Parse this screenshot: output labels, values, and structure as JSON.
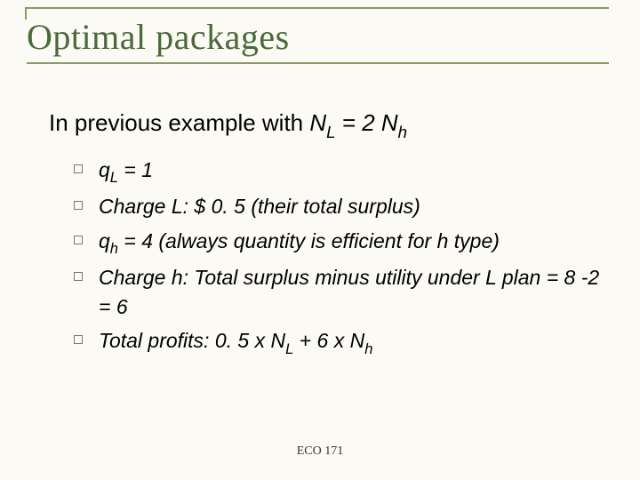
{
  "colors": {
    "background": "#fbfaf4",
    "title_text": "#4a6a3a",
    "rule": "#8a9a6a",
    "body_text": "#000000",
    "bullet_border": "#7a7a5a"
  },
  "typography": {
    "title_font": "Times New Roman",
    "title_size_pt": 40,
    "body_font": "Arial",
    "intro_size_pt": 26,
    "bullet_size_pt": 23,
    "bullet_italic": true,
    "footer_font": "Times New Roman",
    "footer_size_pt": 14
  },
  "title": "Optimal packages",
  "intro": {
    "prefix": "In previous example with ",
    "var1": "N",
    "sub1": "L",
    "mid": " = 2 ",
    "var2": "N",
    "sub2": "h"
  },
  "bullets": [
    {
      "q_var": "q",
      "q_sub": "L",
      "q_eq": " = 1"
    },
    {
      "plain": "Charge L: $ 0. 5 (their total surplus)"
    },
    {
      "q_var": "q",
      "q_sub": "h",
      "tail": " = 4 (always quantity is efficient for h type)"
    },
    {
      "plain": "Charge h: Total surplus minus utility under L plan = 8 -2 = 6"
    },
    {
      "tp_prefix": "Total profits: 0. 5 x ",
      "tp_v1": "N",
      "tp_s1": "L",
      "tp_mid": " + 6 x ",
      "tp_v2": "N",
      "tp_s2": "h"
    }
  ],
  "footer": "ECO 171"
}
